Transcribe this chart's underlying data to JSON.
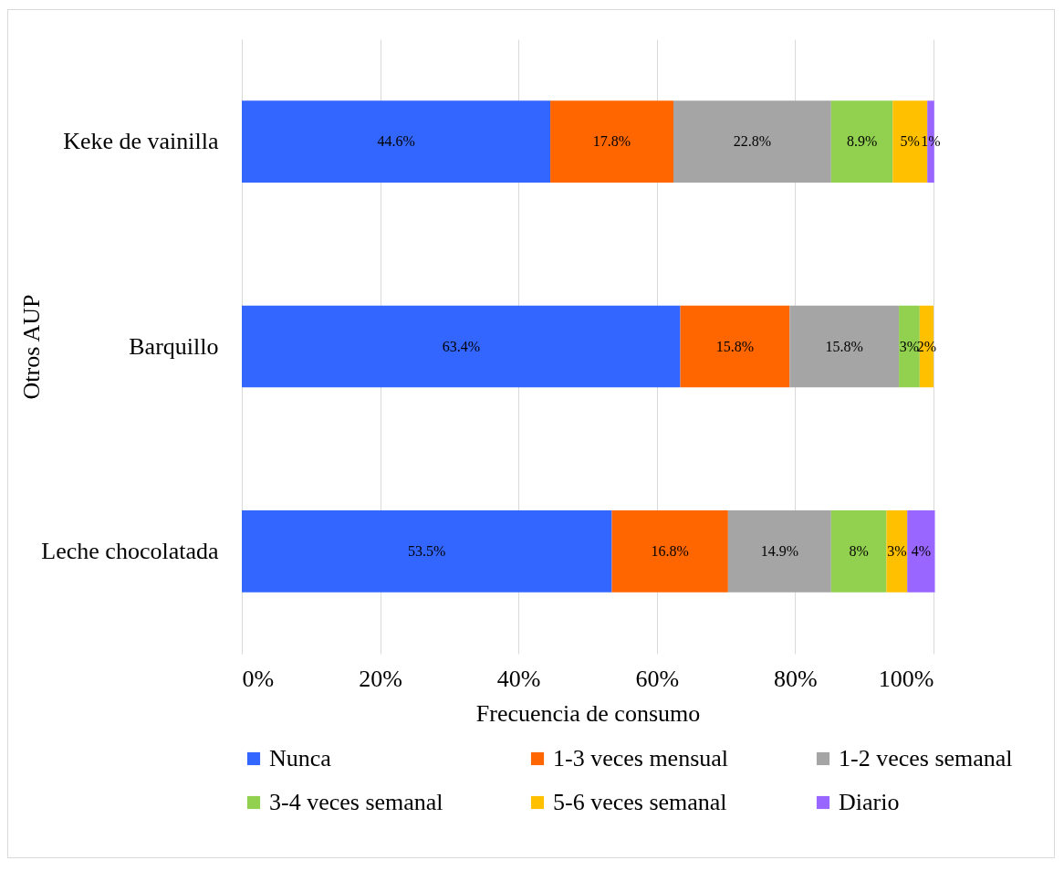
{
  "chart_data": {
    "type": "bar",
    "orientation": "horizontal",
    "stacked": true,
    "xlabel": "Frecuencia de consumo",
    "ylabel": "Otros AUP",
    "categories": [
      "Keke de vainilla",
      "Barquillo",
      "Leche chocolatada"
    ],
    "series": [
      {
        "name": "Nunca",
        "color": "#3366ff",
        "values": [
          44.6,
          63.4,
          53.5
        ],
        "value_labels": [
          "44.6%",
          "63.4%",
          "53.5%"
        ]
      },
      {
        "name": "1-3 veces mensual",
        "color": "#ff6600",
        "values": [
          17.8,
          15.8,
          16.8
        ],
        "value_labels": [
          "17.8%",
          "15.8%",
          "16.8%"
        ]
      },
      {
        "name": "1-2 veces semanal",
        "color": "#a5a5a5",
        "values": [
          22.8,
          15.8,
          14.9
        ],
        "value_labels": [
          "22.8%",
          "15.8%",
          "14.9%"
        ]
      },
      {
        "name": "3-4 veces semanal",
        "color": "#92d050",
        "values": [
          8.9,
          3,
          8
        ],
        "value_labels": [
          "8.9%",
          "3%",
          "8%"
        ]
      },
      {
        "name": "5-6 veces semanal",
        "color": "#ffc000",
        "values": [
          5,
          2,
          3
        ],
        "value_labels": [
          "5%",
          "2%",
          "3%"
        ]
      },
      {
        "name": "Diario",
        "color": "#9966ff",
        "values": [
          1,
          null,
          4
        ],
        "value_labels": [
          "1%",
          null,
          "4%"
        ]
      }
    ],
    "xlim": [
      0,
      100
    ],
    "xticks": [
      {
        "value": 0,
        "label": "0%"
      },
      {
        "value": 20,
        "label": "20%"
      },
      {
        "value": 40,
        "label": "40%"
      },
      {
        "value": 60,
        "label": "60%"
      },
      {
        "value": 80,
        "label": "80%"
      },
      {
        "value": 100,
        "label": "100%"
      }
    ],
    "grid": "x",
    "legend": "bottom"
  }
}
